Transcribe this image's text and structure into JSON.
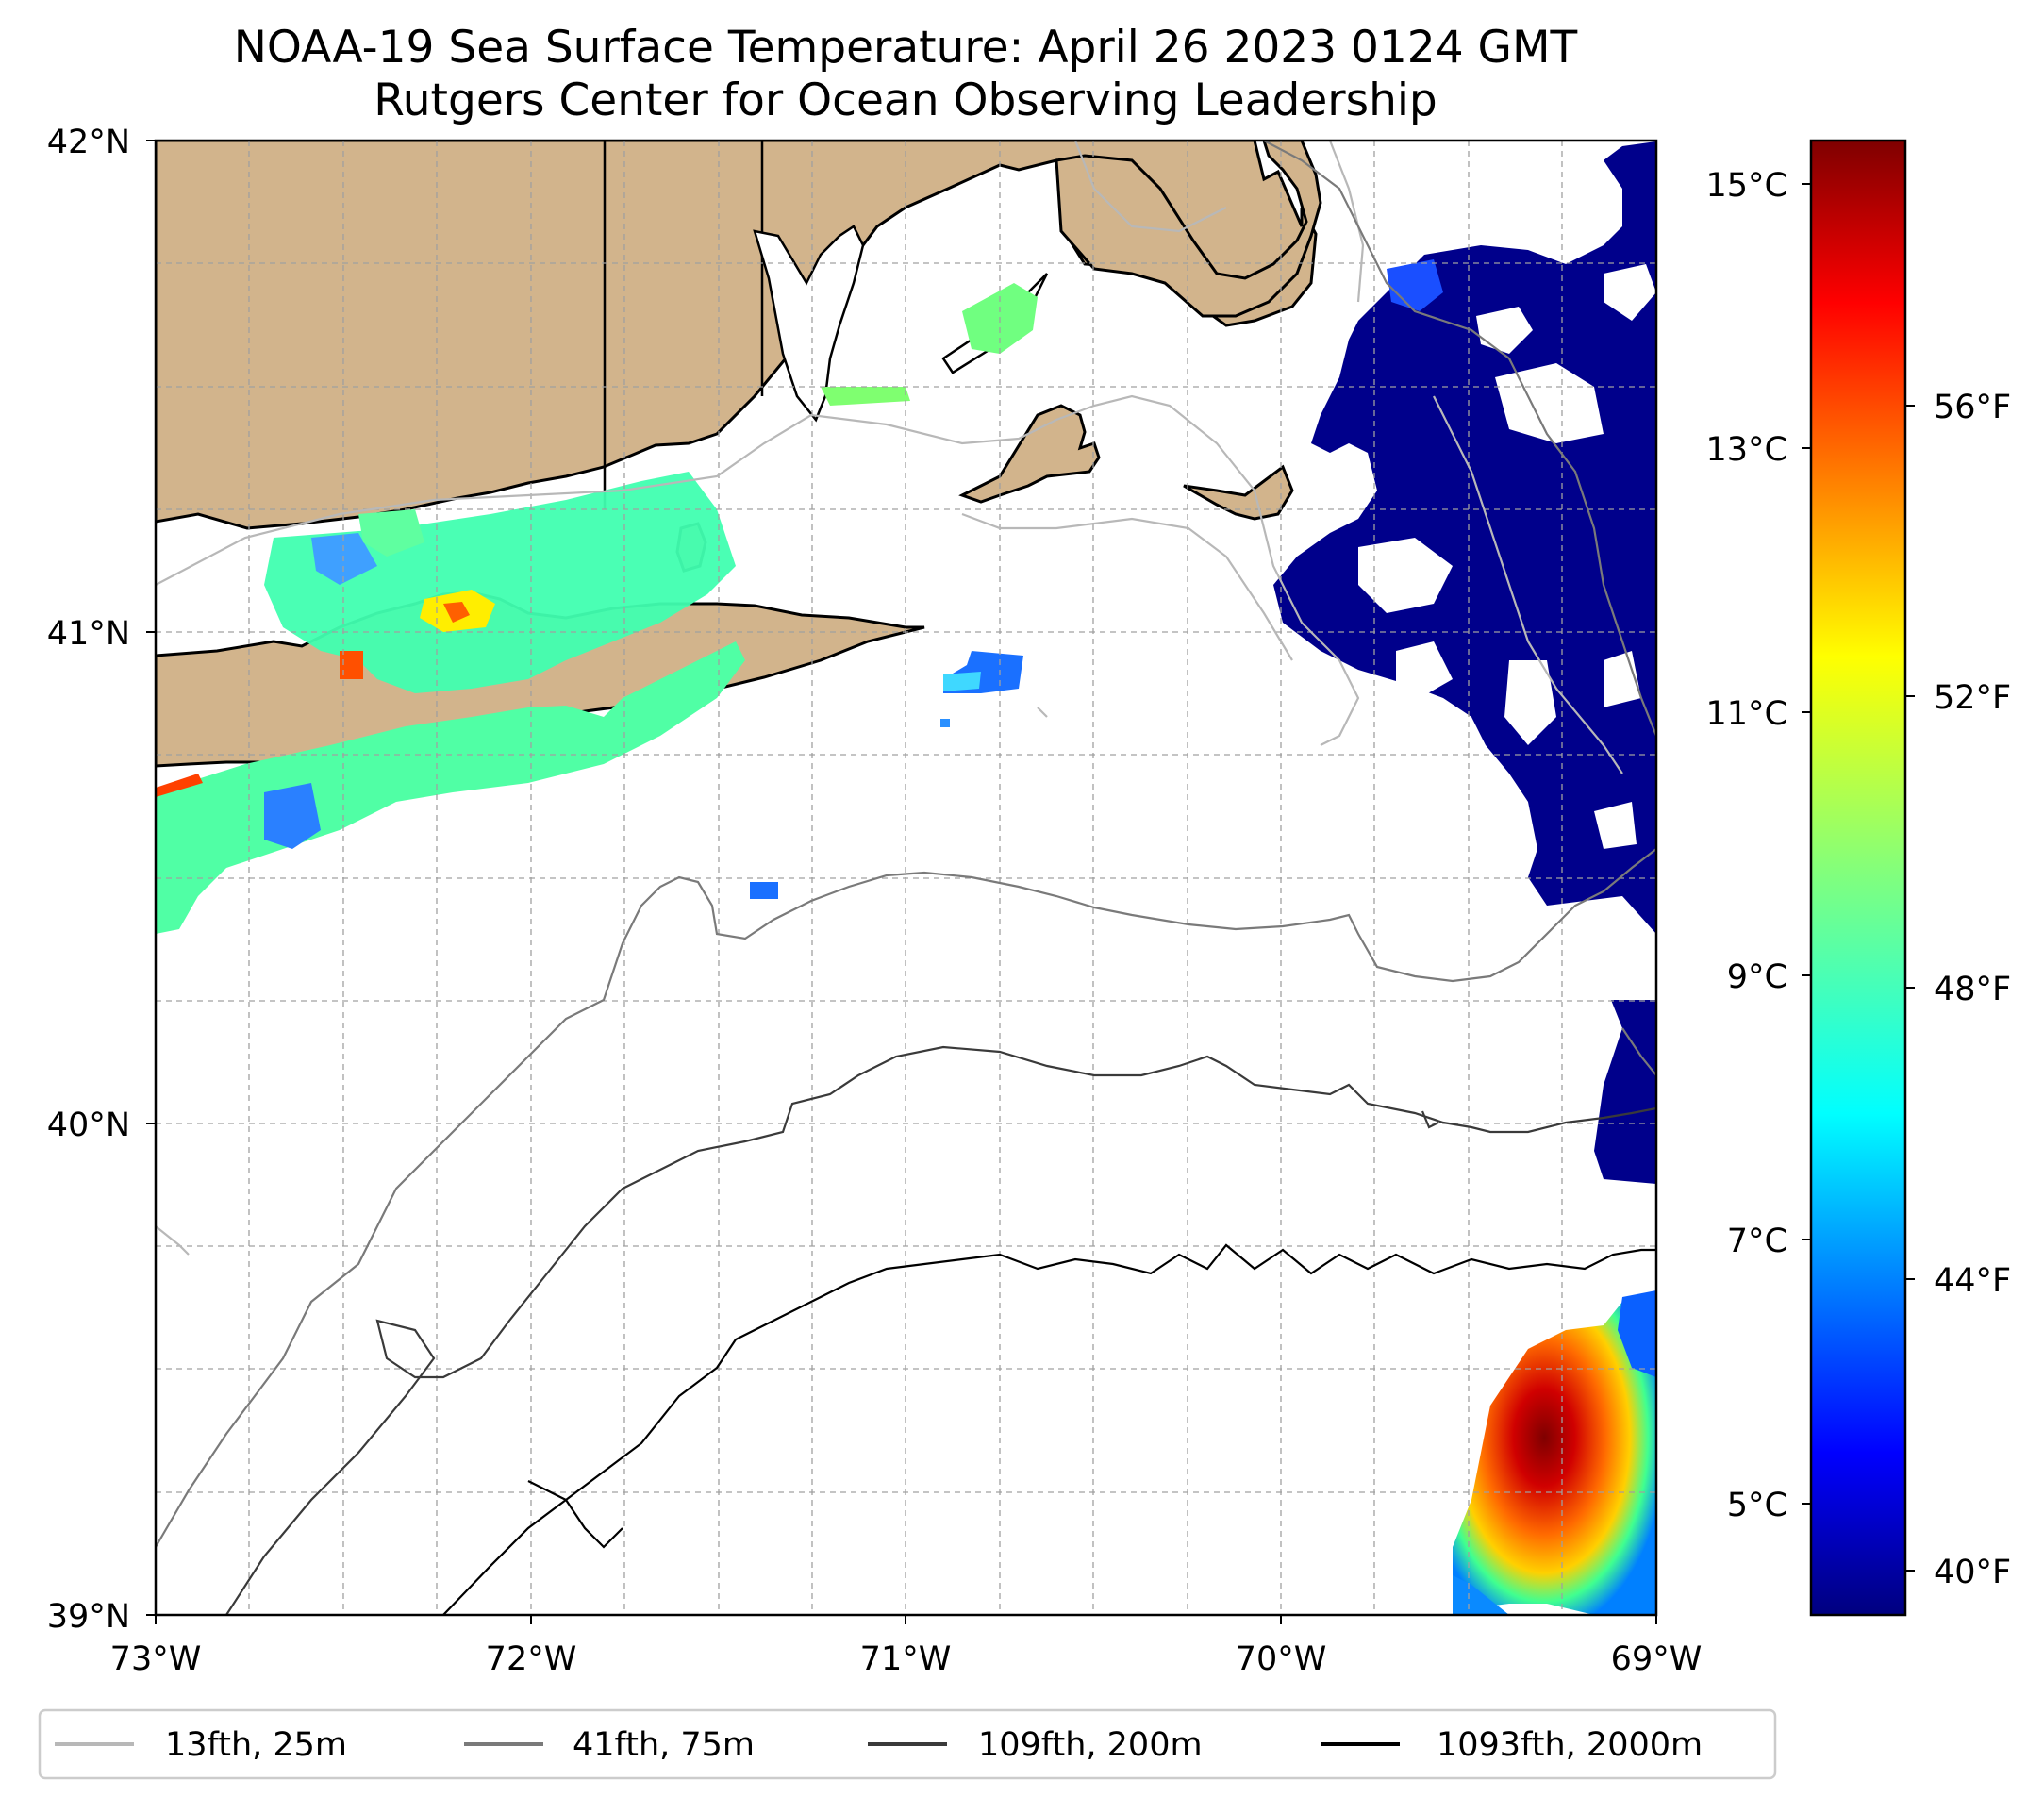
{
  "title": {
    "line1": "NOAA-19 Sea Surface Temperature: April 26 2023 0124 GMT",
    "line2": "Rutgers Center for Ocean Observing Leadership"
  },
  "map": {
    "lon_range": [
      -73,
      -69
    ],
    "lat_range": [
      39,
      42
    ],
    "x_ticks": [
      {
        "lon": -73,
        "label": "73°W"
      },
      {
        "lon": -72,
        "label": "72°W"
      },
      {
        "lon": -71,
        "label": "71°W"
      },
      {
        "lon": -70,
        "label": "70°W"
      },
      {
        "lon": -69,
        "label": "69°W"
      }
    ],
    "y_ticks": [
      {
        "lat": 42,
        "label": "42°N"
      },
      {
        "lat": 41,
        "label": "41°N"
      },
      {
        "lat": 40,
        "label": "40°N"
      },
      {
        "lat": 39,
        "label": "39°N"
      }
    ],
    "gridlines": true,
    "land_color": "#d2b48c",
    "land_regions": [
      "Connecticut / Rhode Island / Massachusetts coast",
      "Long Island",
      "Block Island",
      "Martha's Vineyard",
      "Nantucket",
      "Cape Cod"
    ]
  },
  "colorbar": {
    "colormap": "jet",
    "range_c": [
      4.3,
      15.4
    ],
    "celsius_ticks": [
      {
        "value": 15,
        "label": "15°C"
      },
      {
        "value": 13,
        "label": "13°C"
      },
      {
        "value": 11,
        "label": "11°C"
      },
      {
        "value": 9,
        "label": "9°C"
      },
      {
        "value": 7,
        "label": "7°C"
      },
      {
        "value": 5,
        "label": "5°C"
      }
    ],
    "fahrenheit_ticks": [
      {
        "value": 56,
        "label": "56°F"
      },
      {
        "value": 52,
        "label": "52°F"
      },
      {
        "value": 48,
        "label": "48°F"
      },
      {
        "value": 44,
        "label": "44°F"
      },
      {
        "value": 40,
        "label": "40°F"
      }
    ]
  },
  "legend": {
    "placement": "bottom",
    "items": [
      {
        "label": "13fth, 25m",
        "color": "#b8b8b8"
      },
      {
        "label": "41fth, 75m",
        "color": "#7a7a7a"
      },
      {
        "label": "109fth, 200m",
        "color": "#3a3a3a"
      },
      {
        "label": "1093fth, 2000m",
        "color": "#000000"
      }
    ]
  }
}
